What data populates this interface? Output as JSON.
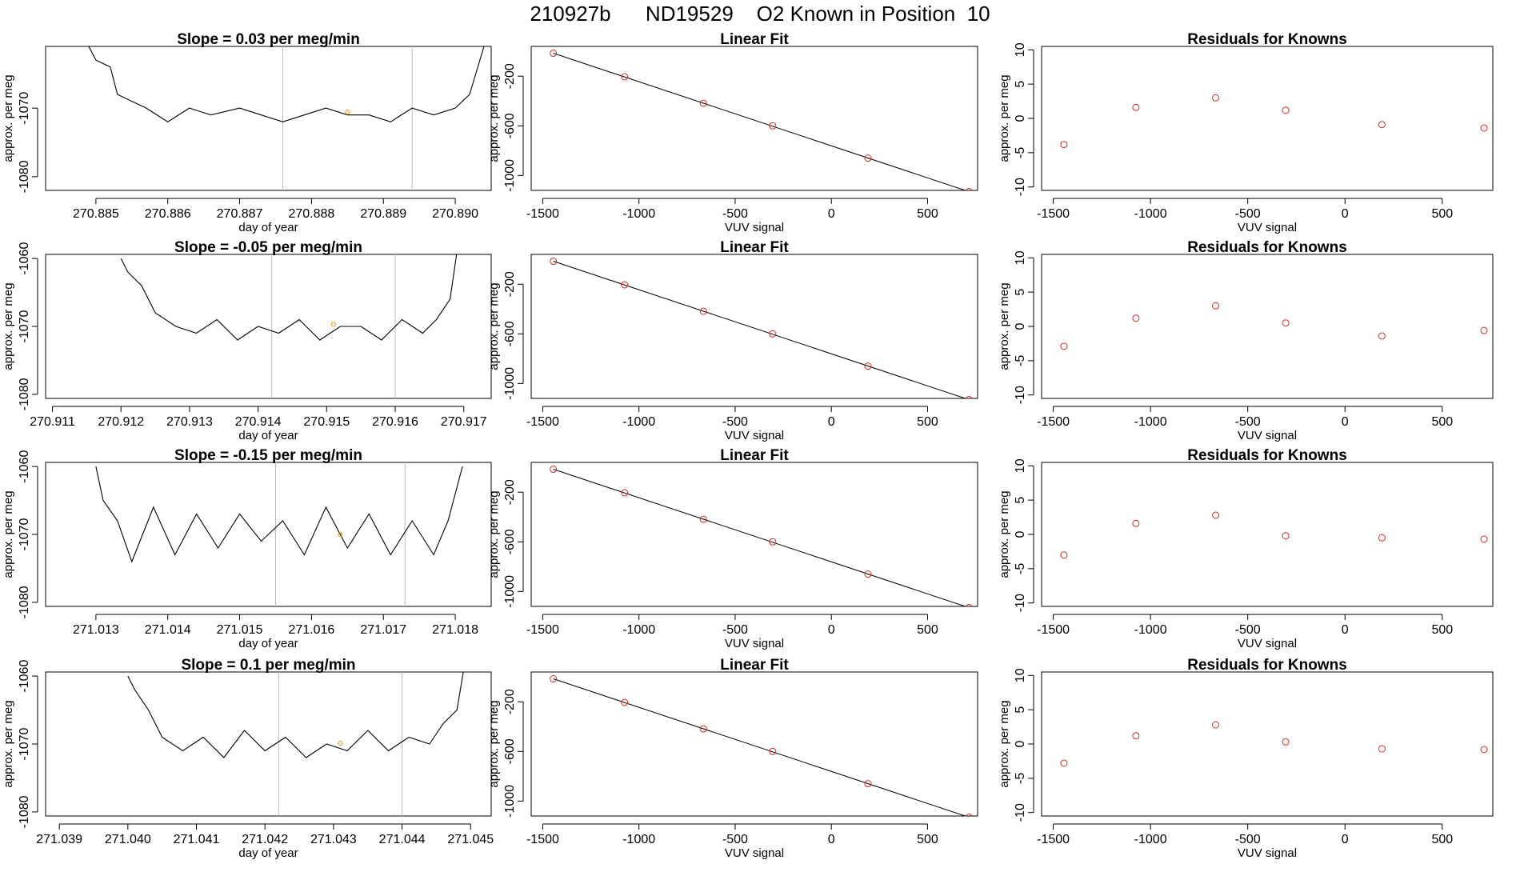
{
  "figure_title": "210927b      ND19529    O2 Known in Position  10",
  "colors": {
    "trace": "#000000",
    "marker": "#d62728",
    "highlight": "#e6a020",
    "vline": "#bbbbbb",
    "axis": "#000000"
  },
  "chart_data": [
    {
      "type": "line",
      "title": "Slope =  0.03  per meg/min",
      "xlabel": "day of year",
      "ylabel": "approx. per meg",
      "xticks": [
        "270.885",
        "270.886",
        "270.887",
        "270.888",
        "270.889",
        "270.890"
      ],
      "xlim": [
        270.8843,
        270.8905
      ],
      "ylim": [
        -1082,
        -1061
      ],
      "yticks": [
        "-1070",
        "-1080"
      ],
      "vlines": [
        270.8876,
        270.8894
      ],
      "highlight_point": [
        270.8885,
        -1070.6
      ],
      "series_levels": [
        -1070.6
      ],
      "x": [
        270.8849,
        270.885,
        270.8852,
        270.8853,
        270.8855,
        270.8857,
        270.886,
        270.8863,
        270.8866,
        270.887,
        270.8873,
        270.8876,
        270.8879,
        270.8882,
        270.8885,
        270.8888,
        270.8891,
        270.8894,
        270.8897,
        270.89,
        270.8902,
        270.8904
      ],
      "y": [
        -1061,
        -1063,
        -1064,
        -1068,
        -1069,
        -1070,
        -1072,
        -1070,
        -1071,
        -1070,
        -1071,
        -1072,
        -1071,
        -1070,
        -1071,
        -1071,
        -1072,
        -1070,
        -1071,
        -1070,
        -1068,
        -1061
      ]
    },
    {
      "type": "scatter",
      "title": "Linear Fit",
      "xlabel": "VUV signal",
      "ylabel": "approx. per meg",
      "xticks": [
        "-1500",
        "-1000",
        "-500",
        "0",
        "500"
      ],
      "xlim": [
        -1560,
        760
      ],
      "yticks": [
        "-200",
        "-600",
        "-1000"
      ],
      "ylim": [
        -1120,
        40
      ],
      "x": [
        -1445,
        -1075,
        -665,
        -305,
        190,
        715
      ],
      "y": [
        -15,
        -205,
        -418,
        -600,
        -860,
        -1130
      ],
      "fit_line": [
        [
          -1445,
          -15
        ],
        [
          715,
          -1130
        ]
      ]
    },
    {
      "type": "scatter",
      "title": "Residuals for Knowns",
      "xlabel": "VUV signal",
      "ylabel": "approx. per meg",
      "xticks": [
        "-1500",
        "-1000",
        "-500",
        "0",
        "500"
      ],
      "xlim": [
        -1560,
        760
      ],
      "yticks": [
        "10",
        "5",
        "0",
        "-5",
        "-10"
      ],
      "ylim": [
        -10.5,
        10.5
      ],
      "x": [
        -1445,
        -1075,
        -665,
        -305,
        190,
        715
      ],
      "y": [
        -3.8,
        1.6,
        3.0,
        1.2,
        -0.9,
        -1.4
      ]
    },
    {
      "type": "line",
      "title": "Slope =  -0.05  per meg/min",
      "xlabel": "day of year",
      "ylabel": "approx. per meg",
      "xticks": [
        "270.911",
        "270.912",
        "270.913",
        "270.914",
        "270.915",
        "270.916",
        "270.917"
      ],
      "xlim": [
        270.9109,
        270.9174
      ],
      "ylim": [
        -1080.6,
        -1059.4
      ],
      "yticks": [
        "-1060",
        "-1070",
        "-1080"
      ],
      "vlines": [
        270.9142,
        270.916
      ],
      "highlight_point": [
        270.9151,
        -1069.7
      ],
      "x": [
        270.912,
        270.9121,
        270.9123,
        270.9125,
        270.9128,
        270.9131,
        270.9134,
        270.9137,
        270.914,
        270.9143,
        270.9146,
        270.9149,
        270.9152,
        270.9155,
        270.9158,
        270.9161,
        270.9164,
        270.9166,
        270.9168,
        270.9169
      ],
      "y": [
        -1060,
        -1062,
        -1064,
        -1068,
        -1070,
        -1071,
        -1069,
        -1072,
        -1070,
        -1071,
        -1069,
        -1072,
        -1070,
        -1070,
        -1072,
        -1069,
        -1071,
        -1069,
        -1066,
        -1059
      ]
    },
    {
      "type": "scatter",
      "title": "Linear Fit",
      "xlabel": "VUV signal",
      "ylabel": "approx. per meg",
      "xticks": [
        "-1500",
        "-1000",
        "-500",
        "0",
        "500"
      ],
      "xlim": [
        -1560,
        760
      ],
      "yticks": [
        "-200",
        "-600",
        "-1000"
      ],
      "ylim": [
        -1120,
        40
      ],
      "x": [
        -1445,
        -1075,
        -665,
        -305,
        190,
        715
      ],
      "y": [
        -15,
        -205,
        -418,
        -600,
        -860,
        -1130
      ],
      "fit_line": [
        [
          -1445,
          -15
        ],
        [
          715,
          -1130
        ]
      ]
    },
    {
      "type": "scatter",
      "title": "Residuals for Knowns",
      "xlabel": "VUV signal",
      "ylabel": "approx. per meg",
      "xticks": [
        "-1500",
        "-1000",
        "-500",
        "0",
        "500"
      ],
      "xlim": [
        -1560,
        760
      ],
      "yticks": [
        "10",
        "5",
        "0",
        "-5",
        "-10"
      ],
      "ylim": [
        -10.5,
        10.5
      ],
      "x": [
        -1445,
        -1075,
        -665,
        -305,
        190,
        715
      ],
      "y": [
        -2.9,
        1.2,
        3.0,
        0.5,
        -1.4,
        -0.6
      ]
    },
    {
      "type": "line",
      "title": "Slope =  -0.15  per meg/min",
      "xlabel": "day of year",
      "ylabel": "approx. per meg",
      "xticks": [
        "271.013",
        "271.014",
        "271.015",
        "271.016",
        "271.017",
        "271.018"
      ],
      "xlim": [
        271.0123,
        271.0185
      ],
      "ylim": [
        -1080.6,
        -1059.4
      ],
      "yticks": [
        "-1060",
        "-1070",
        "-1080"
      ],
      "vlines": [
        271.0155,
        271.0173
      ],
      "highlight_point": [
        271.0164,
        -1070.0
      ],
      "x": [
        271.013,
        271.0131,
        271.0133,
        271.0135,
        271.0138,
        271.0141,
        271.0144,
        271.0147,
        271.015,
        271.0153,
        271.0156,
        271.0159,
        271.0162,
        271.0165,
        271.0168,
        271.0171,
        271.0174,
        271.0177,
        271.0179,
        271.0181
      ],
      "y": [
        -1060,
        -1065,
        -1068,
        -1074,
        -1066,
        -1073,
        -1067,
        -1072,
        -1067,
        -1071,
        -1068,
        -1073,
        -1066,
        -1072,
        -1067,
        -1073,
        -1068,
        -1073,
        -1068,
        -1060
      ]
    },
    {
      "type": "scatter",
      "title": "Linear Fit",
      "xlabel": "VUV signal",
      "ylabel": "approx. per meg",
      "xticks": [
        "-1500",
        "-1000",
        "-500",
        "0",
        "500"
      ],
      "xlim": [
        -1560,
        760
      ],
      "yticks": [
        "-200",
        "-600",
        "-1000"
      ],
      "ylim": [
        -1120,
        40
      ],
      "x": [
        -1445,
        -1075,
        -665,
        -305,
        190,
        715
      ],
      "y": [
        -15,
        -205,
        -418,
        -600,
        -860,
        -1130
      ],
      "fit_line": [
        [
          -1445,
          -15
        ],
        [
          715,
          -1130
        ]
      ]
    },
    {
      "type": "scatter",
      "title": "Residuals for Knowns",
      "xlabel": "VUV signal",
      "ylabel": "approx. per meg",
      "xticks": [
        "-1500",
        "-1000",
        "-500",
        "0",
        "500"
      ],
      "xlim": [
        -1560,
        760
      ],
      "yticks": [
        "10",
        "5",
        "0",
        "-5",
        "-10"
      ],
      "ylim": [
        -10.5,
        10.5
      ],
      "x": [
        -1445,
        -1075,
        -665,
        -305,
        190,
        715
      ],
      "y": [
        -3.0,
        1.6,
        2.8,
        -0.2,
        -0.5,
        -0.7
      ]
    },
    {
      "type": "line",
      "title": "Slope =  0.1  per meg/min",
      "xlabel": "day of year",
      "ylabel": "approx. per meg",
      "xticks": [
        "271.039",
        "271.040",
        "271.041",
        "271.042",
        "271.043",
        "271.044",
        "271.045"
      ],
      "xlim": [
        271.0388,
        271.0453
      ],
      "ylim": [
        -1080.6,
        -1059.4
      ],
      "yticks": [
        "-1060",
        "-1070",
        "-1080"
      ],
      "vlines": [
        271.0422,
        271.044
      ],
      "highlight_point": [
        271.0431,
        -1069.9
      ],
      "x": [
        271.04,
        271.0401,
        271.0403,
        271.0405,
        271.0408,
        271.0411,
        271.0414,
        271.0417,
        271.042,
        271.0423,
        271.0426,
        271.0429,
        271.0432,
        271.0435,
        271.0438,
        271.0441,
        271.0444,
        271.0446,
        271.0448,
        271.0449
      ],
      "y": [
        -1060,
        -1062,
        -1065,
        -1069,
        -1071,
        -1069,
        -1072,
        -1068,
        -1071,
        -1069,
        -1072,
        -1070,
        -1071,
        -1068,
        -1071,
        -1069,
        -1070,
        -1067,
        -1065,
        -1059
      ]
    },
    {
      "type": "scatter",
      "title": "Linear Fit",
      "xlabel": "VUV signal",
      "ylabel": "approx. per meg",
      "xticks": [
        "-1500",
        "-1000",
        "-500",
        "0",
        "500"
      ],
      "xlim": [
        -1560,
        760
      ],
      "yticks": [
        "-200",
        "-600",
        "-1000"
      ],
      "ylim": [
        -1120,
        40
      ],
      "x": [
        -1445,
        -1075,
        -665,
        -305,
        190,
        715
      ],
      "y": [
        -15,
        -205,
        -418,
        -600,
        -860,
        -1130
      ],
      "fit_line": [
        [
          -1445,
          -15
        ],
        [
          715,
          -1130
        ]
      ]
    },
    {
      "type": "scatter",
      "title": "Residuals for Knowns",
      "xlabel": "VUV signal",
      "ylabel": "approx. per meg",
      "xticks": [
        "-1500",
        "-1000",
        "-500",
        "0",
        "500"
      ],
      "xlim": [
        -1560,
        760
      ],
      "yticks": [
        "10",
        "5",
        "0",
        "-5",
        "-10"
      ],
      "ylim": [
        -10.5,
        10.5
      ],
      "x": [
        -1445,
        -1075,
        -665,
        -305,
        190,
        715
      ],
      "y": [
        -2.8,
        1.2,
        2.8,
        0.3,
        -0.7,
        -0.8
      ]
    }
  ]
}
